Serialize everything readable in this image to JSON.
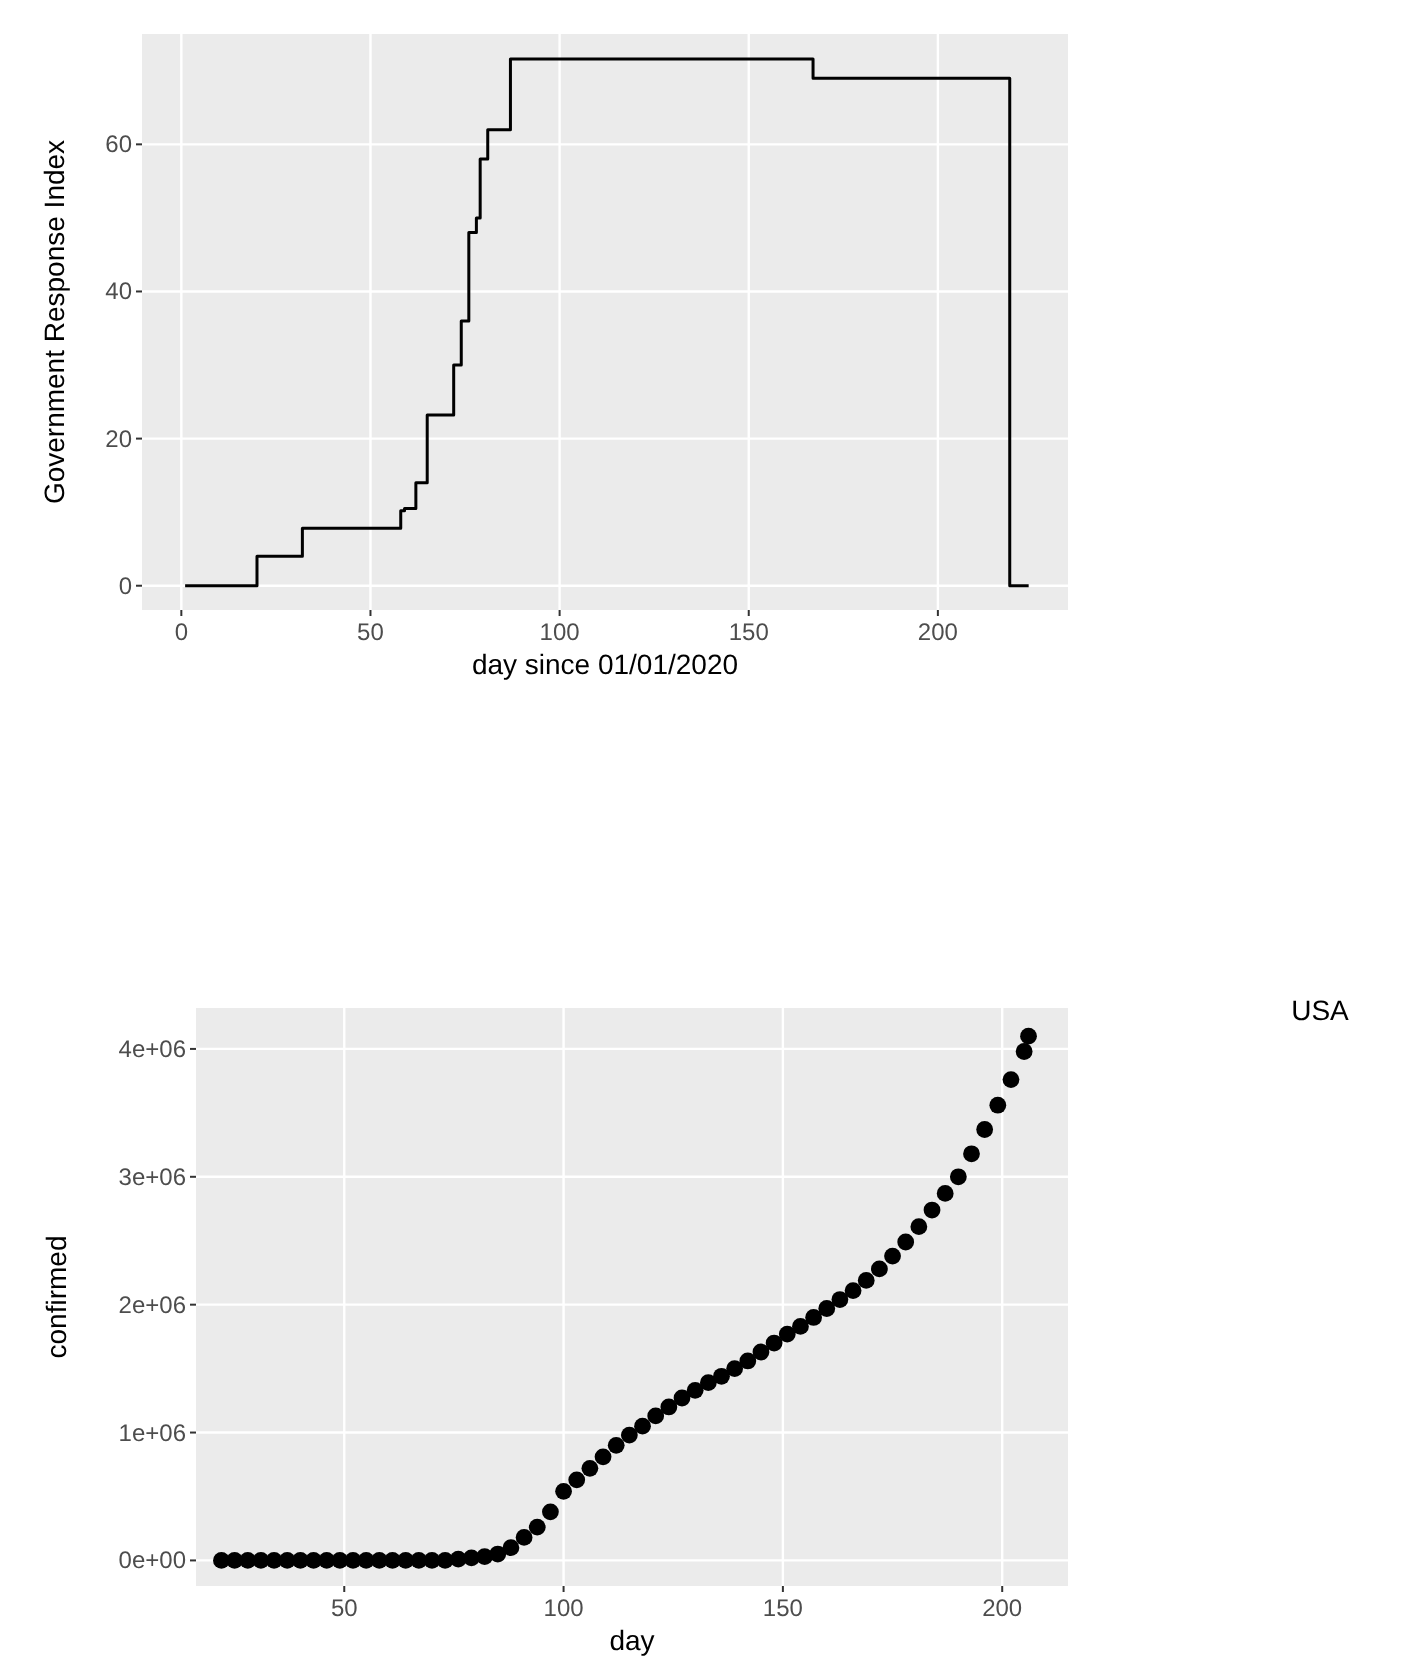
{
  "chart_data": [
    {
      "type": "step",
      "xlabel": "day since 01/01/2020",
      "ylabel": "Government Response Index",
      "xlim": [
        -10.4,
        234.4
      ],
      "ylim": [
        -3.3,
        75
      ],
      "xticks": [
        0,
        50,
        100,
        150,
        200
      ],
      "yticks": [
        0,
        20,
        40,
        60
      ],
      "grid": true,
      "marker": "none",
      "line_style": "solid",
      "series": [
        {
          "color": "#000000",
          "x": [
            1,
            20,
            32,
            58,
            59,
            62,
            65,
            70,
            72,
            74,
            76,
            78,
            79,
            81,
            87,
            166,
            167,
            219,
            224
          ],
          "values": [
            0,
            4,
            7.8,
            10.2,
            10.5,
            14,
            23.2,
            23.2,
            30,
            36,
            48,
            50,
            58,
            62,
            71.6,
            71.6,
            69,
            0,
            0
          ]
        }
      ]
    },
    {
      "type": "scatter",
      "xlabel": "day",
      "ylabel": "confirmed",
      "xlim": [
        16.2,
        215
      ],
      "ylim": [
        -200000,
        4320000
      ],
      "xticks": [
        50,
        100,
        150,
        200
      ],
      "yticks": [
        {
          "value": 0,
          "label": "0e+00"
        },
        {
          "value": 1000000,
          "label": "1e+06"
        },
        {
          "value": 2000000,
          "label": "2e+06"
        },
        {
          "value": 3000000,
          "label": "3e+06"
        },
        {
          "value": 4000000,
          "label": "4e+06"
        }
      ],
      "grid": true,
      "marker": "circle",
      "series": [
        {
          "color": "#000000",
          "x": [
            22,
            25,
            28,
            31,
            34,
            37,
            40,
            43,
            46,
            49,
            52,
            55,
            58,
            61,
            64,
            67,
            70,
            73,
            76,
            79,
            82,
            85,
            88,
            91,
            94,
            97,
            100,
            103,
            106,
            109,
            112,
            115,
            118,
            121,
            124,
            127,
            130,
            133,
            136,
            139,
            142,
            145,
            148,
            151,
            154,
            157,
            160,
            163,
            166,
            169,
            172,
            175,
            178,
            181,
            184,
            187,
            190,
            193,
            196,
            199,
            202,
            205,
            206
          ],
          "values": [
            0,
            0,
            0,
            0,
            0,
            0,
            0,
            0,
            0,
            0,
            0,
            0,
            0,
            0,
            0,
            0,
            0,
            0,
            10000,
            20000,
            30000,
            50000,
            100000,
            180000,
            260000,
            380000,
            540000,
            630000,
            720000,
            810000,
            900000,
            980000,
            1050000,
            1130000,
            1200000,
            1270000,
            1330000,
            1390000,
            1440000,
            1500000,
            1560000,
            1630000,
            1700000,
            1770000,
            1830000,
            1900000,
            1970000,
            2040000,
            2110000,
            2190000,
            2280000,
            2380000,
            2490000,
            2610000,
            2740000,
            2870000,
            3000000,
            3180000,
            3370000,
            3560000,
            3760000,
            3980000,
            4100000
          ]
        }
      ]
    },
    {
      "type": "other",
      "title": "USA"
    }
  ]
}
